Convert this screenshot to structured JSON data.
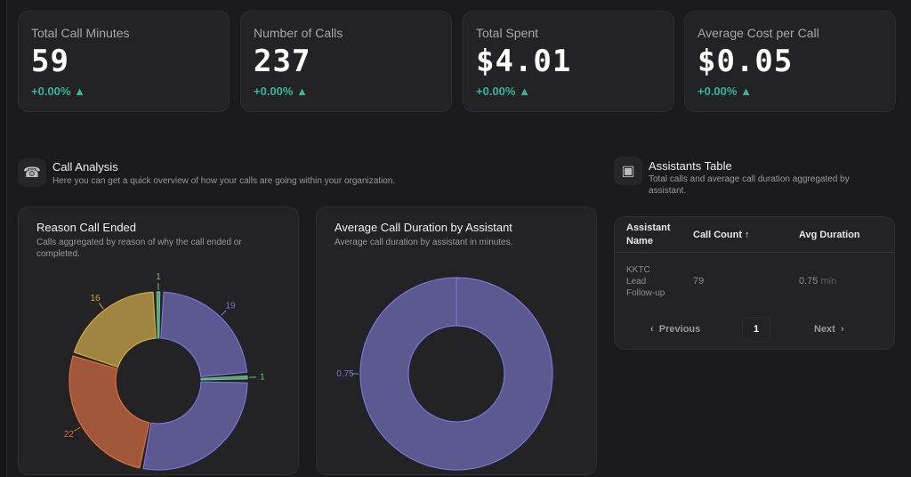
{
  "stats": [
    {
      "label": "Total Call Minutes",
      "value": "59",
      "change": "+0.00%",
      "trend_icon": "triangle-up"
    },
    {
      "label": "Number of Calls",
      "value": "237",
      "change": "+0.00%",
      "trend_icon": "triangle-up"
    },
    {
      "label": "Total Spent",
      "value": "$4.01",
      "change": "+0.00%",
      "trend_icon": "triangle-up"
    },
    {
      "label": "Average Cost per Call",
      "value": "$0.05",
      "change": "+0.00%",
      "trend_icon": "triangle-up"
    }
  ],
  "call_analysis": {
    "title": "Call Analysis",
    "subtitle": "Here you can get a quick overview of how your calls are going within your organization.",
    "icon": "phone-icon"
  },
  "assistants_section": {
    "title": "Assistants Table",
    "subtitle": "Total calls and average call duration aggregated by assistant.",
    "icon": "contact-card-icon"
  },
  "colors": {
    "accent_green": "#35b597",
    "purple": "#5c5890",
    "green": "#5a9a78",
    "orange": "#a0573a",
    "yellow": "#a08542"
  },
  "chart_data": [
    {
      "type": "pie",
      "title": "Reason Call Ended",
      "subtitle": "Calls aggregated by reason of why the call ended or completed.",
      "slices": [
        {
          "value": 1,
          "label": "1",
          "color": "#5a9a78"
        },
        {
          "value": 19,
          "label": "19",
          "color": "#5c5890"
        },
        {
          "value": 1,
          "label": "1",
          "color": "#5a9a78"
        },
        {
          "value": 23,
          "label": "",
          "color": "#5c5890"
        },
        {
          "value": 22,
          "label": "22",
          "color": "#a0573a"
        },
        {
          "value": 16,
          "label": "16",
          "color": "#a08542"
        }
      ]
    },
    {
      "type": "pie",
      "title": "Average Call Duration by Assistant",
      "subtitle": "Average call duration by assistant in minutes.",
      "slices": [
        {
          "value": 0.75,
          "label": "0.75",
          "color": "#5c5890"
        }
      ]
    }
  ],
  "table": {
    "headers": [
      "Assistant Name",
      "Call Count ↑",
      "Avg Duration"
    ],
    "rows": [
      {
        "name": "KKTC Lead Follow-up",
        "count": "79",
        "duration": "0.75",
        "unit": "min"
      }
    ],
    "pagination": {
      "prev": "Previous",
      "page": "1",
      "next": "Next"
    }
  }
}
